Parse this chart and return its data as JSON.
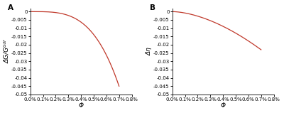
{
  "panel_A": {
    "label": "A",
    "ylabel": "ΔG/Gᴳᵈᶠ",
    "xlabel": "Φ",
    "ylim": [
      -0.05,
      0.002
    ],
    "yticks": [
      0,
      -0.005,
      -0.01,
      -0.015,
      -0.02,
      -0.025,
      -0.03,
      -0.035,
      -0.04,
      -0.045,
      -0.05
    ],
    "yticklabels": [
      "0",
      "-0.005",
      "-0.01",
      "-0.015",
      "-0.02",
      "-0.025",
      "-0.03",
      "-0.035",
      "-0.04",
      "-0.045",
      "-0.05"
    ],
    "xlim": [
      0.0,
      0.008
    ],
    "xticks": [
      0.0,
      0.001,
      0.002,
      0.003,
      0.004,
      0.005,
      0.006,
      0.007,
      0.008
    ],
    "xticklabels": [
      "0.0%",
      "0.1%",
      "0.2%",
      "0.3%",
      "0.4%",
      "0.5%",
      "0.6%",
      "0.7%",
      "0.8%"
    ],
    "line_color": "#c0392b",
    "curve_power": 3.5,
    "curve_scale": -0.045
  },
  "panel_B": {
    "label": "B",
    "ylabel": "Δη",
    "xlabel": "Φ",
    "ylim": [
      -0.05,
      0.002
    ],
    "yticks": [
      0,
      -0.005,
      -0.01,
      -0.015,
      -0.02,
      -0.025,
      -0.03,
      -0.035,
      -0.04,
      -0.045,
      -0.05
    ],
    "yticklabels": [
      "0",
      "-0.005",
      "-0.01",
      "-0.015",
      "-0.02",
      "-0.025",
      "-0.03",
      "-0.035",
      "-0.04",
      "-0.045",
      "-0.05"
    ],
    "xlim": [
      0.0,
      0.008
    ],
    "xticks": [
      0.0,
      0.001,
      0.002,
      0.003,
      0.004,
      0.005,
      0.006,
      0.007,
      0.008
    ],
    "xticklabels": [
      "0.0%",
      "0.1%",
      "0.2%",
      "0.3%",
      "0.4%",
      "0.5%",
      "0.6%",
      "0.7%",
      "0.8%"
    ],
    "line_color": "#c0392b",
    "curve_power": 1.7,
    "curve_scale": -0.023
  },
  "background_color": "#ffffff",
  "tick_fontsize": 5.0,
  "label_fontsize": 6.5,
  "panel_label_fontsize": 7.5,
  "figsize": [
    4.0,
    1.59
  ],
  "dpi": 100
}
